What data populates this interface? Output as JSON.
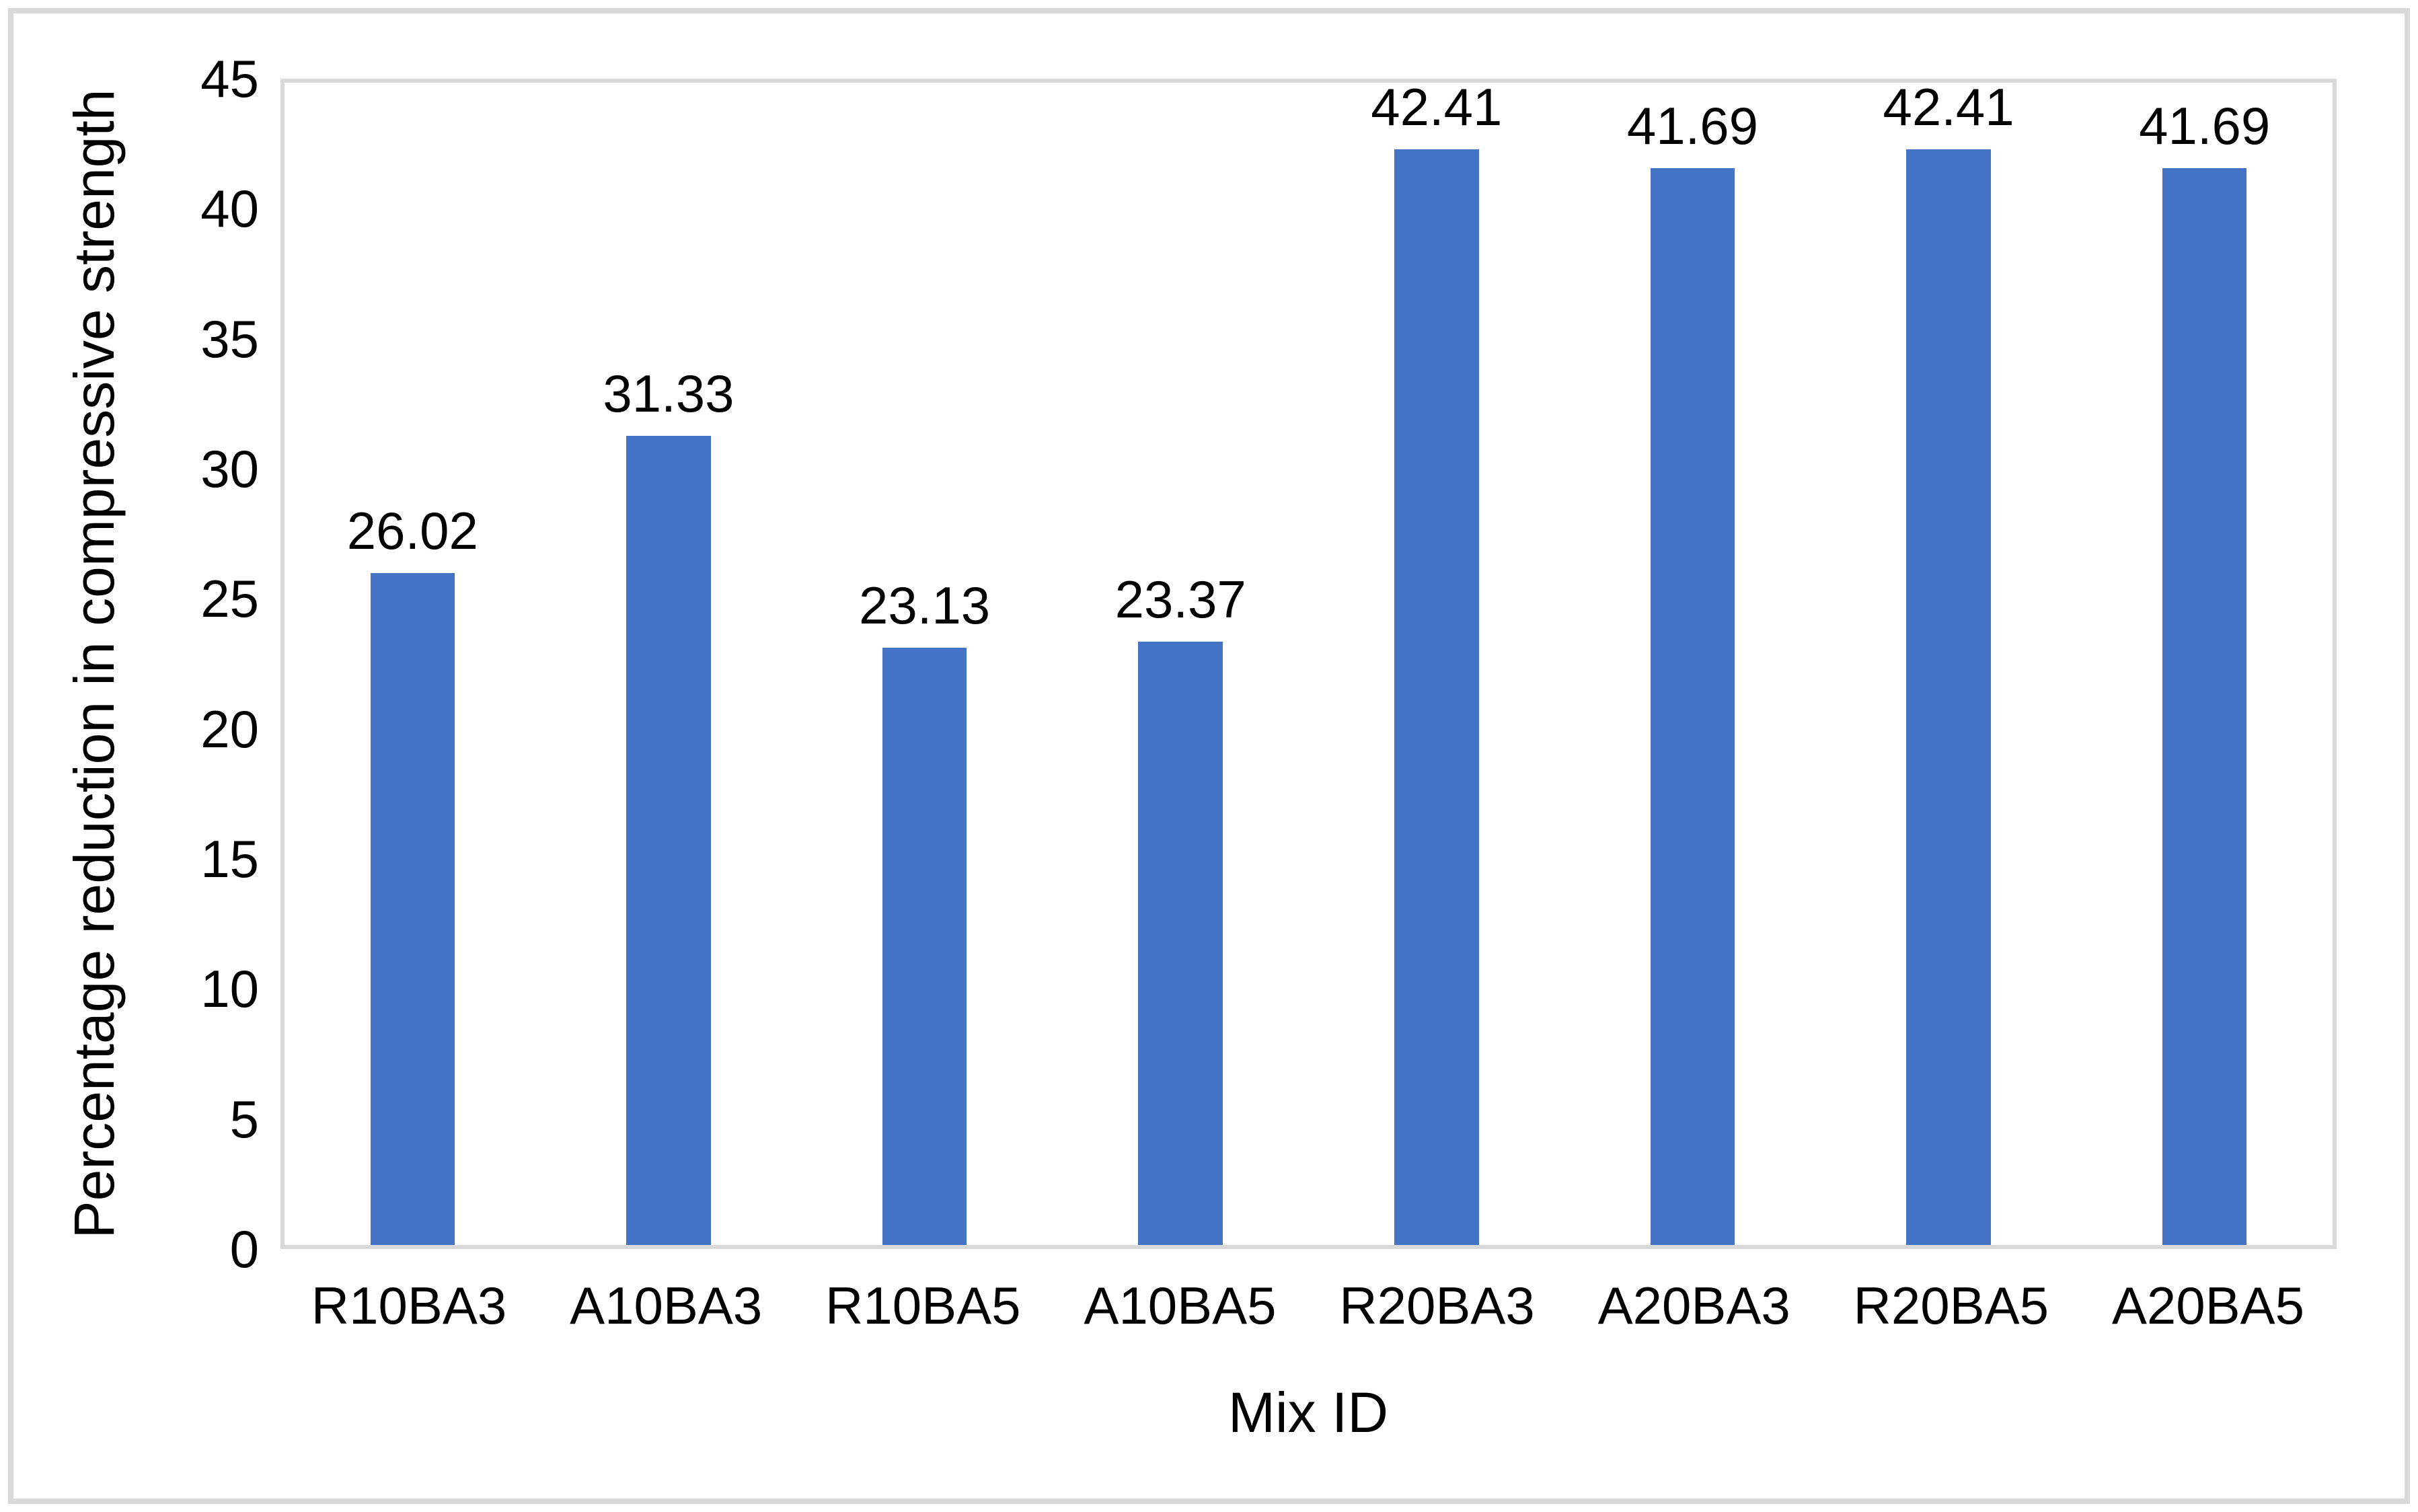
{
  "chart_data": {
    "type": "bar",
    "categories": [
      "R10BA3",
      "A10BA3",
      "R10BA5",
      "A10BA5",
      "R20BA3",
      "A20BA3",
      "R20BA5",
      "A20BA5"
    ],
    "values": [
      26.02,
      31.33,
      23.13,
      23.37,
      42.41,
      41.69,
      42.41,
      41.69
    ],
    "value_labels": [
      "26.02",
      "31.33",
      "23.13",
      "23.37",
      "42.41",
      "41.69",
      "42.41",
      "41.69"
    ],
    "title": "",
    "xlabel": "Mix ID",
    "ylabel": "Percentage reduction in compressive strength",
    "ylim": [
      0,
      45
    ],
    "yticks": [
      0,
      5,
      10,
      15,
      20,
      25,
      30,
      35,
      40,
      45
    ],
    "grid": false,
    "legend": "none",
    "bar_color": "#4472C4",
    "axis_line_color": "#D9D9D9",
    "text_color": "#000000"
  }
}
